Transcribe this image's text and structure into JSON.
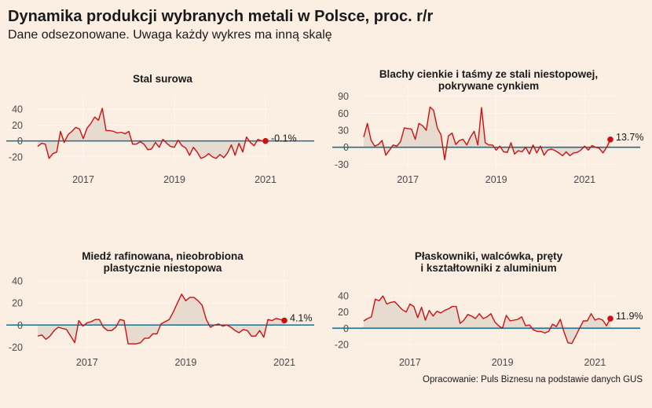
{
  "title": "Dynamika produkcji wybranych metali w Polsce, proc. r/r",
  "subtitle": "Dane odsezonowane. Uwaga każdy wykres ma inną skalę",
  "source": "Opracowanie: Puls Biznesu na podstawie danych GUS",
  "colors": {
    "background": "#FBEEE3",
    "line": "#CC1111",
    "area": "#E4D7CC",
    "zero_line": "#1F6E8C",
    "end_marker": "#CC1111"
  },
  "chart_data": [
    {
      "type": "area",
      "title": [
        "Stal surowa"
      ],
      "x_start": "2016-01",
      "x_ticks": [
        "2017",
        "2019",
        "2021"
      ],
      "y_ticks": [
        -20,
        0,
        20,
        40
      ],
      "ylim": [
        -28,
        46
      ],
      "end_label": "-0.1%",
      "values": [
        -7,
        -3,
        -4,
        -22,
        -16,
        -14,
        12,
        -2,
        8,
        12,
        17,
        15,
        3,
        16,
        22,
        30,
        26,
        41,
        13,
        13,
        12,
        10,
        11,
        9,
        12,
        -4,
        -4,
        -1,
        -4,
        -11,
        -10,
        -2,
        -8,
        2,
        -3,
        -7,
        -8,
        1,
        -6,
        -9,
        -18,
        -8,
        -14,
        -22,
        -20,
        -16,
        -20,
        -22,
        -17,
        -21,
        -15,
        -5,
        -18,
        -3,
        -14,
        5,
        -2,
        -6,
        2,
        0,
        -0.1
      ],
      "grid": true,
      "legend": "none"
    },
    {
      "type": "area",
      "title": [
        "Blachy cienkie i taśmy  ze stali niestopowej,",
        "pokrywane cynkiem"
      ],
      "x_start": "2016-01",
      "x_ticks": [
        "2017",
        "2019",
        "2021"
      ],
      "y_ticks": [
        -30,
        0,
        30,
        60,
        90
      ],
      "ylim": [
        -35,
        95
      ],
      "end_label": "13.7%",
      "values": [
        18,
        42,
        12,
        2,
        5,
        12,
        -14,
        -5,
        4,
        2,
        10,
        34,
        33,
        32,
        14,
        42,
        38,
        30,
        71,
        65,
        34,
        22,
        -22,
        20,
        25,
        5,
        12,
        14,
        4,
        18,
        28,
        4,
        70,
        8,
        4,
        4,
        -5,
        2,
        -8,
        -9,
        8,
        -12,
        -6,
        -8,
        0,
        -12,
        4,
        -10,
        2,
        -14,
        -5,
        -3,
        -6,
        -10,
        -15,
        -8,
        -15,
        -10,
        -9,
        -5,
        2,
        -5,
        3,
        0,
        -2,
        -10,
        0,
        13.7
      ],
      "grid": true,
      "legend": "none"
    },
    {
      "type": "area",
      "title": [
        "Miedź rafinowana, nieobrobiona",
        "plastycznie niestopowa"
      ],
      "x_start": "2016-01",
      "x_ticks": [
        "2017",
        "2019",
        "2021"
      ],
      "y_ticks": [
        -20,
        0,
        20,
        40
      ],
      "ylim": [
        -24,
        45
      ],
      "end_label": "4.1%",
      "values": [
        -10,
        -9,
        -13,
        -10,
        -5,
        -2,
        -3,
        -4,
        -10,
        -16,
        4,
        -1,
        2,
        3,
        5,
        5,
        -2,
        -5,
        -5,
        -2,
        5,
        4,
        -17,
        -17,
        -17,
        -16,
        -12,
        -12,
        -8,
        -8,
        1,
        3,
        5,
        12,
        20,
        28,
        22,
        25,
        25,
        22,
        18,
        5,
        -2,
        0,
        1,
        -1,
        0,
        -2,
        -5,
        -7,
        -4,
        -5,
        -10,
        -10,
        -5,
        -11,
        5,
        4,
        6,
        5,
        4.1
      ],
      "grid": true,
      "legend": "none"
    },
    {
      "type": "area",
      "title": [
        "Płaskowniki, walcówka, pręty",
        "i kształtowniki z aluminium"
      ],
      "x_start": "2016-01",
      "x_ticks": [
        "2017",
        "2019",
        "2021"
      ],
      "y_ticks": [
        -20,
        0,
        20,
        40
      ],
      "ylim": [
        -27,
        48
      ],
      "end_label": "11.9%",
      "values": [
        9,
        12,
        14,
        36,
        34,
        40,
        30,
        32,
        33,
        28,
        23,
        20,
        30,
        27,
        13,
        26,
        10,
        22,
        15,
        21,
        19,
        22,
        24,
        27,
        27,
        6,
        10,
        17,
        15,
        12,
        18,
        12,
        14,
        18,
        8,
        3,
        0,
        16,
        9,
        10,
        11,
        14,
        3,
        4,
        -2,
        -4,
        -4,
        -6,
        -4,
        5,
        2,
        11,
        -5,
        -18,
        -19,
        -10,
        0,
        9,
        9,
        18,
        10,
        12,
        10,
        3,
        11.9
      ],
      "grid": true,
      "legend": "none"
    }
  ]
}
